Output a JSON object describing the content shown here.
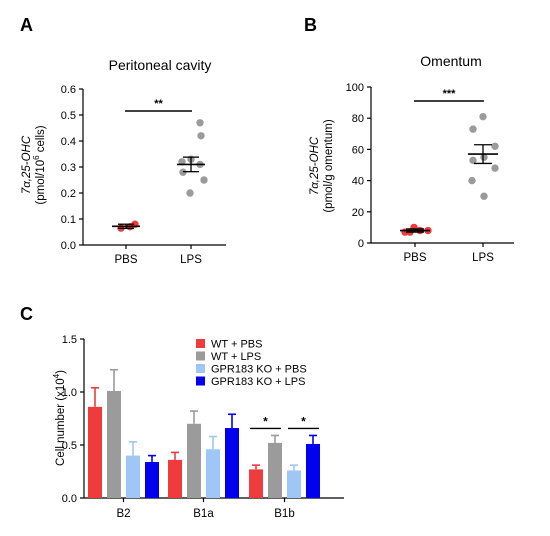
{
  "panels": {
    "A": {
      "letter": "A"
    },
    "B": {
      "letter": "B"
    },
    "C": {
      "letter": "C"
    }
  },
  "colors": {
    "wt_pbs": "#ee3b3b",
    "wt_lps": "#9b9b9b",
    "ko_pbs": "#9ec7f5",
    "ko_lps": "#0000ee",
    "axis": "#000000"
  },
  "chart_data": [
    {
      "id": "A",
      "type": "scatter",
      "title": "Peritoneal cavity",
      "ylabel_line1": "7α,25-OHC",
      "ylabel_line2_pre": "(pmol/10",
      "ylabel_line2_sup": "6",
      "ylabel_line2_post": " cells)",
      "ylim": [
        0,
        0.6
      ],
      "yticks": [
        "0.0",
        "0.1",
        "0.2",
        "0.3",
        "0.4",
        "0.5",
        "0.6"
      ],
      "categories": [
        "PBS",
        "LPS"
      ],
      "significance": "**",
      "series": [
        {
          "category": "PBS",
          "color": "#ee3b3b",
          "points": [
            0.065,
            0.08,
            0.07
          ],
          "mean": 0.072,
          "sem": 0.008
        },
        {
          "category": "LPS",
          "color": "#9b9b9b",
          "points": [
            0.47,
            0.42,
            0.33,
            0.32,
            0.31,
            0.28,
            0.25,
            0.2
          ],
          "mean": 0.31,
          "sem": 0.028
        }
      ]
    },
    {
      "id": "B",
      "type": "scatter",
      "title": "Omentum",
      "ylabel_line1": "7α,25-OHC",
      "ylabel_line2": "(pmol/g omentum)",
      "ylim": [
        0,
        100
      ],
      "yticks": [
        "0",
        "20",
        "40",
        "60",
        "80",
        "100"
      ],
      "categories": [
        "PBS",
        "LPS"
      ],
      "significance": "***",
      "series": [
        {
          "category": "PBS",
          "color": "#ee3b3b",
          "points": [
            7,
            8,
            10,
            8,
            7
          ],
          "mean": 8,
          "sem": 1
        },
        {
          "category": "LPS",
          "color": "#9b9b9b",
          "points": [
            81,
            73,
            62,
            55,
            53,
            48,
            40,
            30
          ],
          "mean": 57,
          "sem": 6
        }
      ]
    },
    {
      "id": "C",
      "type": "bar",
      "ylabel_pre": "Cell number (x10",
      "ylabel_sup": "4",
      "ylabel_post": ")",
      "ylim": [
        0,
        1.5
      ],
      "yticks": [
        "0.0",
        "0.5",
        "1.0",
        "1.5"
      ],
      "categories": [
        "B2",
        "B1a",
        "B1b"
      ],
      "legend_position": "top-right",
      "series": [
        {
          "name": "WT + PBS",
          "color": "#ee3b3b",
          "values": [
            0.86,
            0.36,
            0.27
          ],
          "errors": [
            0.18,
            0.07,
            0.04
          ]
        },
        {
          "name": "WT + LPS",
          "color": "#9b9b9b",
          "values": [
            1.01,
            0.7,
            0.52
          ],
          "errors": [
            0.2,
            0.12,
            0.07
          ]
        },
        {
          "name": "GPR183 KO + PBS",
          "color": "#9ec7f5",
          "values": [
            0.4,
            0.46,
            0.26
          ],
          "errors": [
            0.13,
            0.12,
            0.05
          ]
        },
        {
          "name": "GPR183 KO + LPS",
          "color": "#0000ee",
          "values": [
            0.34,
            0.66,
            0.51
          ],
          "errors": [
            0.06,
            0.13,
            0.08
          ]
        }
      ],
      "significance": [
        {
          "category": "B1b",
          "between": [
            0,
            1
          ],
          "label": "*"
        },
        {
          "category": "B1b",
          "between": [
            2,
            3
          ],
          "label": "*"
        }
      ]
    }
  ]
}
